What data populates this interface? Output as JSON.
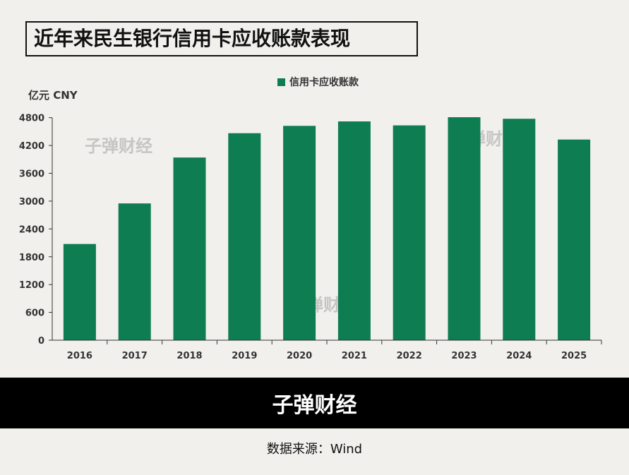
{
  "chart_data": {
    "type": "bar",
    "title": "近年来民生银行信用卡应收账款表现",
    "ylabel": "亿元 CNY",
    "categories": [
      "2016",
      "2017",
      "2018",
      "2019",
      "2020",
      "2021",
      "2022",
      "2023",
      "2024",
      "2025"
    ],
    "series": [
      {
        "name": "信用卡应收账款",
        "values": [
          2075,
          2950,
          3940,
          4465,
          4623,
          4719,
          4633,
          4810,
          4776,
          4328
        ]
      }
    ],
    "ylim": [
      0,
      4800
    ],
    "yticks": [
      0,
      600,
      1200,
      1800,
      2400,
      3000,
      3600,
      4200,
      4800
    ],
    "grid": false,
    "legend": "top",
    "color": "#0e7d52"
  },
  "watermark": "子弹财经",
  "footer": {
    "brand": "子弹财经",
    "source": "数据来源：Wind"
  }
}
